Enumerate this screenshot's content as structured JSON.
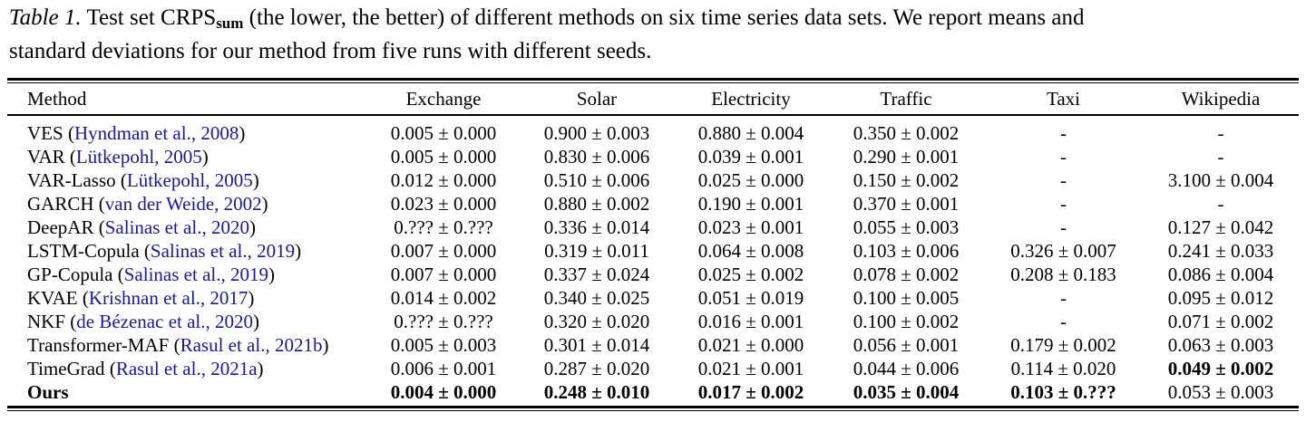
{
  "caption": {
    "label": "Table 1.",
    "seg1": " Test set CRPS",
    "subscript": "sum",
    "seg2": " (the lower, the better) of different methods on six time series data sets. We report means and",
    "seg3": "standard deviations for our method from five runs with different seeds."
  },
  "colors": {
    "citation": "#1a1a8c",
    "text": "#000000"
  },
  "table": {
    "columns": [
      "Method",
      "Exchange",
      "Solar",
      "Electricity",
      "Traffic",
      "Taxi",
      "Wikipedia"
    ],
    "rows": [
      {
        "method": "VES",
        "method_bold": false,
        "citation": "Hyndman et al., 2008",
        "cells": [
          {
            "v": "0.005 ± 0.000",
            "b": false
          },
          {
            "v": "0.900 ± 0.003",
            "b": false
          },
          {
            "v": "0.880 ± 0.004",
            "b": false
          },
          {
            "v": "0.350 ± 0.002",
            "b": false
          },
          {
            "v": "-",
            "b": false
          },
          {
            "v": "-",
            "b": false
          }
        ]
      },
      {
        "method": "VAR",
        "method_bold": false,
        "citation": "Lütkepohl, 2005",
        "cells": [
          {
            "v": "0.005 ± 0.000",
            "b": false
          },
          {
            "v": "0.830 ± 0.006",
            "b": false
          },
          {
            "v": "0.039 ± 0.001",
            "b": false
          },
          {
            "v": "0.290 ± 0.001",
            "b": false
          },
          {
            "v": "-",
            "b": false
          },
          {
            "v": "-",
            "b": false
          }
        ]
      },
      {
        "method": "VAR-Lasso",
        "method_bold": false,
        "citation": "Lütkepohl, 2005",
        "cells": [
          {
            "v": "0.012 ± 0.000",
            "b": false
          },
          {
            "v": "0.510 ± 0.006",
            "b": false
          },
          {
            "v": "0.025 ± 0.000",
            "b": false
          },
          {
            "v": "0.150 ± 0.002",
            "b": false
          },
          {
            "v": "-",
            "b": false
          },
          {
            "v": "3.100 ± 0.004",
            "b": false
          }
        ]
      },
      {
        "method": "GARCH",
        "method_bold": false,
        "citation": "van der Weide, 2002",
        "cells": [
          {
            "v": "0.023 ± 0.000",
            "b": false
          },
          {
            "v": "0.880 ± 0.002",
            "b": false
          },
          {
            "v": "0.190 ± 0.001",
            "b": false
          },
          {
            "v": "0.370 ± 0.001",
            "b": false
          },
          {
            "v": "-",
            "b": false
          },
          {
            "v": "-",
            "b": false
          }
        ]
      },
      {
        "method": "DeepAR",
        "method_bold": false,
        "citation": "Salinas et al., 2020",
        "cells": [
          {
            "v": "0.??? ± 0.???",
            "b": false
          },
          {
            "v": "0.336 ± 0.014",
            "b": false
          },
          {
            "v": "0.023 ± 0.001",
            "b": false
          },
          {
            "v": "0.055 ± 0.003",
            "b": false
          },
          {
            "v": "-",
            "b": false
          },
          {
            "v": "0.127 ± 0.042",
            "b": false
          }
        ]
      },
      {
        "method": "LSTM-Copula",
        "method_bold": false,
        "citation": "Salinas et al., 2019",
        "cells": [
          {
            "v": "0.007 ± 0.000",
            "b": false
          },
          {
            "v": "0.319 ± 0.011",
            "b": false
          },
          {
            "v": "0.064 ± 0.008",
            "b": false
          },
          {
            "v": "0.103 ± 0.006",
            "b": false
          },
          {
            "v": "0.326 ± 0.007",
            "b": false
          },
          {
            "v": "0.241 ± 0.033",
            "b": false
          }
        ]
      },
      {
        "method": "GP-Copula",
        "method_bold": false,
        "citation": "Salinas et al., 2019",
        "cells": [
          {
            "v": "0.007 ± 0.000",
            "b": false
          },
          {
            "v": "0.337 ± 0.024",
            "b": false
          },
          {
            "v": "0.025 ± 0.002",
            "b": false
          },
          {
            "v": "0.078 ± 0.002",
            "b": false
          },
          {
            "v": "0.208 ± 0.183",
            "b": false
          },
          {
            "v": "0.086 ± 0.004",
            "b": false
          }
        ]
      },
      {
        "method": "KVAE",
        "method_bold": false,
        "citation": "Krishnan et al., 2017",
        "cells": [
          {
            "v": "0.014 ± 0.002",
            "b": false
          },
          {
            "v": "0.340 ± 0.025",
            "b": false
          },
          {
            "v": "0.051 ± 0.019",
            "b": false
          },
          {
            "v": "0.100 ± 0.005",
            "b": false
          },
          {
            "v": "-",
            "b": false
          },
          {
            "v": "0.095 ± 0.012",
            "b": false
          }
        ]
      },
      {
        "method": "NKF",
        "method_bold": false,
        "citation": "de Bézenac et al., 2020",
        "cells": [
          {
            "v": "0.??? ± 0.???",
            "b": false
          },
          {
            "v": "0.320 ± 0.020",
            "b": false
          },
          {
            "v": "0.016 ± 0.001",
            "b": false
          },
          {
            "v": "0.100 ± 0.002",
            "b": false
          },
          {
            "v": "-",
            "b": false
          },
          {
            "v": "0.071 ± 0.002",
            "b": false
          }
        ]
      },
      {
        "method": "Transformer-MAF",
        "method_bold": false,
        "citation": "Rasul et al., 2021b",
        "cells": [
          {
            "v": "0.005 ± 0.003",
            "b": false
          },
          {
            "v": "0.301 ± 0.014",
            "b": false
          },
          {
            "v": "0.021 ± 0.000",
            "b": false
          },
          {
            "v": "0.056 ± 0.001",
            "b": false
          },
          {
            "v": "0.179 ± 0.002",
            "b": false
          },
          {
            "v": "0.063 ± 0.003",
            "b": false
          }
        ]
      },
      {
        "method": "TimeGrad",
        "method_bold": false,
        "citation": "Rasul et al., 2021a",
        "cells": [
          {
            "v": "0.006 ± 0.001",
            "b": false
          },
          {
            "v": "0.287 ± 0.020",
            "b": false
          },
          {
            "v": "0.021 ± 0.001",
            "b": false
          },
          {
            "v": "0.044 ± 0.006",
            "b": false
          },
          {
            "v": "0.114 ± 0.020",
            "b": false
          },
          {
            "v": "0.049 ± 0.002",
            "b": true
          }
        ]
      },
      {
        "method": "Ours",
        "method_bold": true,
        "citation": null,
        "cells": [
          {
            "v": "0.004 ± 0.000",
            "b": true
          },
          {
            "v": "0.248 ± 0.010",
            "b": true
          },
          {
            "v": "0.017 ± 0.002",
            "b": true
          },
          {
            "v": "0.035 ± 0.004",
            "b": true
          },
          {
            "v": "0.103 ± 0.???",
            "b": true
          },
          {
            "v": "0.053 ± 0.003",
            "b": false
          }
        ]
      }
    ]
  }
}
